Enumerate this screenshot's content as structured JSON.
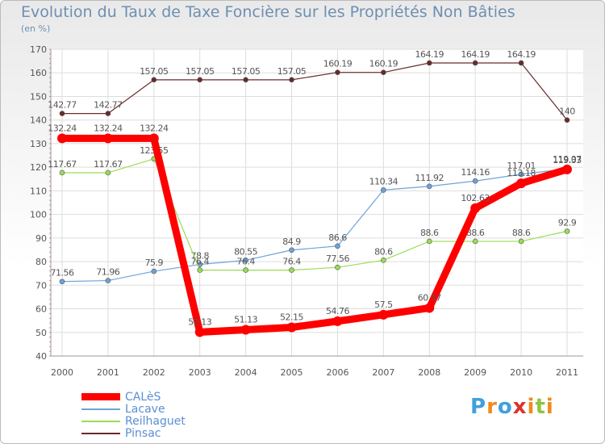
{
  "chart_data": {
    "type": "line",
    "title": "Evolution du Taux de Taxe Foncière sur les Propriétés Non Bâties",
    "subtitle": "(en %)",
    "xlabel": "",
    "ylabel": "",
    "x": [
      "2000",
      "2001",
      "2002",
      "2003",
      "2004",
      "2005",
      "2006",
      "2007",
      "2008",
      "2009",
      "2010",
      "2011"
    ],
    "ylim": [
      40,
      170
    ],
    "yticks": [
      40,
      50,
      60,
      70,
      80,
      90,
      100,
      110,
      120,
      130,
      140,
      150,
      160,
      170
    ],
    "grid": true,
    "legend_position": "bottom-left",
    "series": [
      {
        "name": "Pinsac",
        "color": "#6b2a2a",
        "values": [
          142.77,
          142.77,
          157.05,
          157.05,
          157.05,
          157.05,
          160.19,
          160.19,
          164.19,
          164.19,
          164.19,
          140
        ],
        "labels": [
          "142.77",
          "142.77",
          "157.05",
          "157.05",
          "157.05",
          "157.05",
          "160.19",
          "160.19",
          "164.19",
          "164.19",
          "164.19",
          "140"
        ]
      },
      {
        "name": "Lacave",
        "color": "#6ea3d8",
        "values": [
          71.56,
          71.96,
          75.9,
          78.8,
          80.55,
          84.9,
          86.6,
          110.34,
          111.92,
          114.16,
          117.01,
          119.33
        ],
        "labels": [
          "71.56",
          "71.96",
          "75.9",
          "78.8",
          "80.55",
          "84.9",
          "86.6",
          "110.34",
          "111.92",
          "114.16",
          "117.01",
          "119.33"
        ]
      },
      {
        "name": "Reilhaguet",
        "color": "#99dd55",
        "values": [
          117.67,
          117.67,
          123.55,
          76.4,
          76.4,
          76.4,
          77.56,
          80.6,
          88.6,
          88.6,
          88.6,
          92.9
        ],
        "labels": [
          "117.67",
          "117.67",
          "123.55",
          "76.4",
          "76.4",
          "76.4",
          "77.56",
          "80.6",
          "88.6",
          "88.6",
          "88.6",
          "92.9"
        ]
      },
      {
        "name": "CALèS",
        "color": "#ff0000",
        "values": [
          132.24,
          132.24,
          132.24,
          50.13,
          51.13,
          52.15,
          54.76,
          57.5,
          60.37,
          102.63,
          113.18,
          119.07
        ],
        "labels": [
          "132.24",
          "132.24",
          "132.24",
          "50.13",
          "51.13",
          "52.15",
          "54.76",
          "57.5",
          "60.37",
          "102.63",
          "113.18",
          "119.07"
        ]
      }
    ]
  },
  "legend": [
    {
      "name": "CALèS",
      "color": "#ff0000"
    },
    {
      "name": "Lacave",
      "color": "#6ea3d8"
    },
    {
      "name": "Reilhaguet",
      "color": "#99dd55"
    },
    {
      "name": "Pinsac",
      "color": "#6b2a2a"
    }
  ],
  "logo": {
    "text": "Proxiti",
    "letters": [
      "P",
      "r",
      "o",
      "x",
      "i",
      "t",
      "i"
    ],
    "colors": [
      "#3fa0e0",
      "#f08a1d",
      "#3fa0e0",
      "#e0312b",
      "#f08a1d",
      "#8cc63f",
      "#f08a1d"
    ]
  }
}
